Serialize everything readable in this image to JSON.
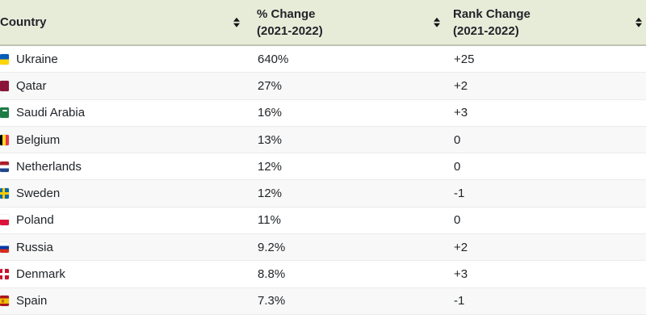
{
  "table": {
    "columns": [
      {
        "label": "Country",
        "sublabel": ""
      },
      {
        "label": "% Change",
        "sublabel": "(2021-2022)"
      },
      {
        "label": "Rank Change",
        "sublabel": "(2021-2022)"
      }
    ],
    "rows": [
      {
        "country": "Ukraine",
        "flag_class": "flag flag-ua",
        "pct": "640%",
        "rank": "+25"
      },
      {
        "country": "Qatar",
        "flag_class": "flag flag-qa",
        "pct": "27%",
        "rank": "+2"
      },
      {
        "country": "Saudi Arabia",
        "flag_class": "flag flag-sa",
        "pct": "16%",
        "rank": "+3"
      },
      {
        "country": "Belgium",
        "flag_class": "flag flag-be",
        "pct": "13%",
        "rank": "0"
      },
      {
        "country": "Netherlands",
        "flag_class": "flag flag-nl",
        "pct": "12%",
        "rank": "0"
      },
      {
        "country": "Sweden",
        "flag_class": "flag flag-se",
        "pct": "12%",
        "rank": "-1"
      },
      {
        "country": "Poland",
        "flag_class": "flag flag-pl",
        "pct": "11%",
        "rank": "0"
      },
      {
        "country": "Russia",
        "flag_class": "flag flag-ru",
        "pct": "9.2%",
        "rank": "+2"
      },
      {
        "country": "Denmark",
        "flag_class": "flag flag-dk",
        "pct": "8.8%",
        "rank": "+3"
      },
      {
        "country": "Spain",
        "flag_class": "flag flag-es",
        "pct": "7.3%",
        "rank": "-1"
      }
    ]
  },
  "icons": {
    "sort": "sort-toggle-icon"
  },
  "colors": {
    "header_bg": "#e7ecd9",
    "header_border": "#bdc2b3",
    "row_alt_bg": "#f8f8f8",
    "row_border": "#ebebeb",
    "text": "#212529",
    "sort_icon": "#151515"
  },
  "chart_data": {
    "type": "table",
    "columns": [
      "Country",
      "% Change (2021-2022)",
      "Rank Change (2021-2022)"
    ],
    "rows": [
      [
        "Ukraine",
        "640%",
        "+25"
      ],
      [
        "Qatar",
        "27%",
        "+2"
      ],
      [
        "Saudi Arabia",
        "16%",
        "+3"
      ],
      [
        "Belgium",
        "13%",
        "0"
      ],
      [
        "Netherlands",
        "12%",
        "0"
      ],
      [
        "Sweden",
        "12%",
        "-1"
      ],
      [
        "Poland",
        "11%",
        "0"
      ],
      [
        "Russia",
        "9.2%",
        "+2"
      ],
      [
        "Denmark",
        "8.8%",
        "+3"
      ],
      [
        "Spain",
        "7.3%",
        "-1"
      ]
    ]
  }
}
